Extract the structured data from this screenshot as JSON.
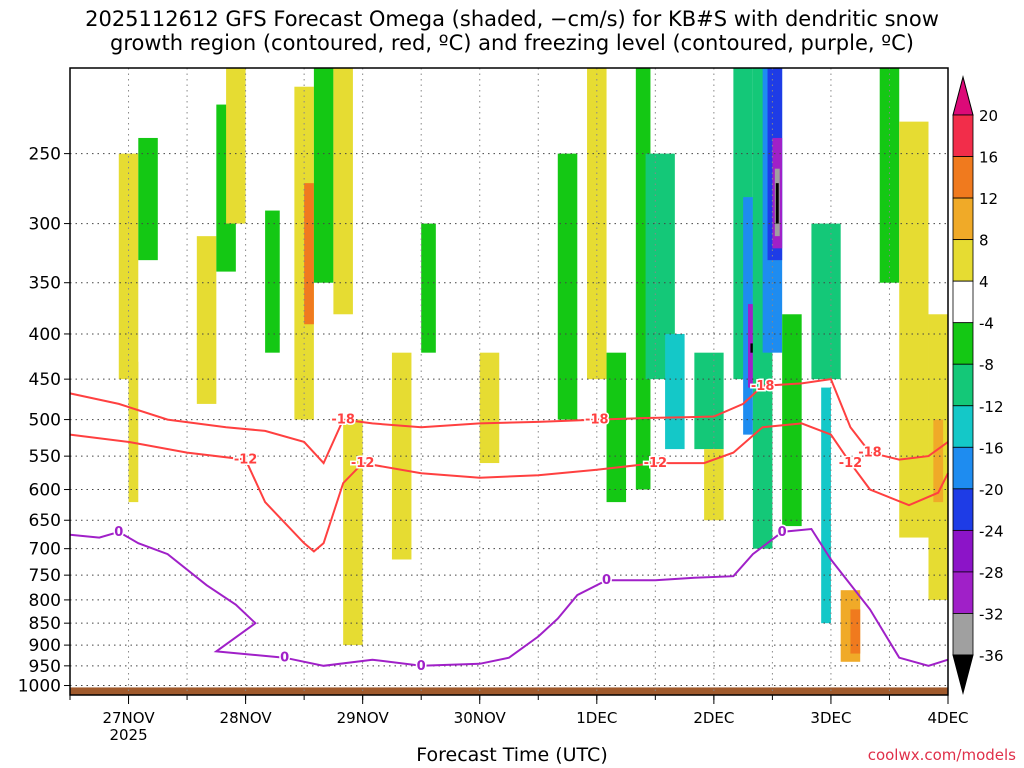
{
  "title_line1": "2025112612 GFS Forecast Omega (shaded, −cm/s) for KB#S with dendritic snow",
  "title_line2": "growth region (contoured, red, ºC) and freezing level (contoured, purple, ºC)",
  "credit": "coolwx.com/models",
  "colors": {
    "dendritic_contour": "#ff4040",
    "freezing_contour": "#a020c8",
    "terrain": "#a05a2c",
    "grid": "#888888"
  },
  "chart_data": {
    "type": "heatmap",
    "xlabel": "Forecast Time (UTC)",
    "ylabel": "",
    "x_ticks": [
      {
        "label": "27NOV",
        "sub": "2025",
        "hour": 12
      },
      {
        "label": "28NOV",
        "sub": "",
        "hour": 36
      },
      {
        "label": "29NOV",
        "sub": "",
        "hour": 60
      },
      {
        "label": "30NOV",
        "sub": "",
        "hour": 84
      },
      {
        "label": "1DEC",
        "sub": "",
        "hour": 108
      },
      {
        "label": "2DEC",
        "sub": "",
        "hour": 132
      },
      {
        "label": "3DEC",
        "sub": "",
        "hour": 156
      },
      {
        "label": "4DEC",
        "sub": "",
        "hour": 180
      }
    ],
    "xlim_hours": [
      0,
      180
    ],
    "y_axis": {
      "scale": "log-pressure",
      "ylim_hpa": [
        1025,
        200
      ],
      "ticks": [
        250,
        300,
        350,
        400,
        450,
        500,
        550,
        600,
        650,
        700,
        750,
        800,
        850,
        900,
        950,
        1000
      ]
    },
    "colorbar": {
      "labels": [
        "20",
        "16",
        "12",
        "8",
        "4",
        "-4",
        "-8",
        "-12",
        "-16",
        "-20",
        "-24",
        "-28",
        "-32",
        "-36"
      ],
      "bins": [
        {
          "from": 16,
          "to": 20,
          "color": "#f22d4a"
        },
        {
          "from": 12,
          "to": 16,
          "color": "#f07a1e"
        },
        {
          "from": 8,
          "to": 12,
          "color": "#f0aa28"
        },
        {
          "from": 4,
          "to": 8,
          "color": "#e6dc32"
        },
        {
          "from": -4,
          "to": 4,
          "color": "#ffffff"
        },
        {
          "from": -8,
          "to": -4,
          "color": "#14c814"
        },
        {
          "from": -12,
          "to": -8,
          "color": "#14c878"
        },
        {
          "from": -16,
          "to": -12,
          "color": "#14c8c8"
        },
        {
          "from": -20,
          "to": -16,
          "color": "#1e8cf0"
        },
        {
          "from": -24,
          "to": -20,
          "color": "#1e3ce6"
        },
        {
          "from": -28,
          "to": -24,
          "color": "#8c14c8"
        },
        {
          "from": -32,
          "to": -28,
          "color": "#a020c8"
        },
        {
          "from": -36,
          "to": -32,
          "color": "#a0a0a0"
        }
      ],
      "top_triangle_color": "#dc0a78",
      "bottom_triangle_color": "#000000"
    },
    "contour_labels": {
      "dendritic_top": "-18",
      "dendritic_bottom": "-12",
      "freezing": "0"
    },
    "dendritic_top_contour": [
      [
        0,
        467
      ],
      [
        10,
        480
      ],
      [
        20,
        500
      ],
      [
        32,
        510
      ],
      [
        40,
        515
      ],
      [
        48,
        530
      ],
      [
        52,
        560
      ],
      [
        56,
        500
      ],
      [
        62,
        505
      ],
      [
        72,
        510
      ],
      [
        84,
        505
      ],
      [
        96,
        503
      ],
      [
        108,
        500
      ],
      [
        118,
        498
      ],
      [
        126,
        497
      ],
      [
        132,
        496
      ],
      [
        138,
        480
      ],
      [
        142,
        458
      ],
      [
        150,
        455
      ],
      [
        156,
        450
      ],
      [
        160,
        510
      ],
      [
        164,
        545
      ],
      [
        170,
        555
      ],
      [
        176,
        550
      ],
      [
        180,
        530
      ]
    ],
    "dendritic_bottom_contour": [
      [
        0,
        520
      ],
      [
        12,
        530
      ],
      [
        24,
        545
      ],
      [
        36,
        555
      ],
      [
        40,
        620
      ],
      [
        48,
        690
      ],
      [
        50,
        705
      ],
      [
        52,
        690
      ],
      [
        56,
        590
      ],
      [
        60,
        560
      ],
      [
        72,
        575
      ],
      [
        84,
        582
      ],
      [
        96,
        578
      ],
      [
        108,
        570
      ],
      [
        120,
        560
      ],
      [
        130,
        560
      ],
      [
        136,
        545
      ],
      [
        142,
        510
      ],
      [
        150,
        505
      ],
      [
        156,
        520
      ],
      [
        160,
        560
      ],
      [
        164,
        600
      ],
      [
        172,
        625
      ],
      [
        178,
        605
      ],
      [
        180,
        575
      ]
    ],
    "freezing_contour": [
      [
        0,
        675
      ],
      [
        6,
        680
      ],
      [
        10,
        670
      ],
      [
        14,
        690
      ],
      [
        20,
        710
      ],
      [
        28,
        770
      ],
      [
        34,
        810
      ],
      [
        38,
        850
      ],
      [
        30,
        915
      ],
      [
        44,
        930
      ],
      [
        52,
        950
      ],
      [
        62,
        935
      ],
      [
        72,
        950
      ],
      [
        84,
        945
      ],
      [
        90,
        930
      ],
      [
        96,
        880
      ],
      [
        100,
        840
      ],
      [
        104,
        790
      ],
      [
        110,
        760
      ],
      [
        120,
        760
      ],
      [
        128,
        755
      ],
      [
        136,
        752
      ],
      [
        140,
        710
      ],
      [
        146,
        670
      ],
      [
        152,
        665
      ],
      [
        156,
        720
      ],
      [
        164,
        820
      ],
      [
        170,
        930
      ],
      [
        176,
        950
      ],
      [
        180,
        935
      ]
    ],
    "omega_cells": [
      {
        "h0": 10,
        "h1": 14,
        "p_top": 250,
        "p_bot": 450,
        "value": 6
      },
      {
        "h0": 12,
        "h1": 14,
        "p_top": 430,
        "p_bot": 620,
        "value": 6
      },
      {
        "h0": 14,
        "h1": 18,
        "p_top": 240,
        "p_bot": 330,
        "value": -6
      },
      {
        "h0": 26,
        "h1": 30,
        "p_top": 310,
        "p_bot": 480,
        "value": 6
      },
      {
        "h0": 30,
        "h1": 34,
        "p_top": 220,
        "p_bot": 340,
        "value": -6
      },
      {
        "h0": 32,
        "h1": 36,
        "p_top": 200,
        "p_bot": 300,
        "value": 6
      },
      {
        "h0": 40,
        "h1": 43,
        "p_top": 290,
        "p_bot": 420,
        "value": -6
      },
      {
        "h0": 46,
        "h1": 50,
        "p_top": 210,
        "p_bot": 500,
        "value": 6
      },
      {
        "h0": 48,
        "h1": 50,
        "p_top": 270,
        "p_bot": 390,
        "value": 14
      },
      {
        "h0": 50,
        "h1": 54,
        "p_top": 200,
        "p_bot": 350,
        "value": -6
      },
      {
        "h0": 54,
        "h1": 58,
        "p_top": 200,
        "p_bot": 380,
        "value": 6
      },
      {
        "h0": 56,
        "h1": 60,
        "p_top": 500,
        "p_bot": 900,
        "value": 6
      },
      {
        "h0": 66,
        "h1": 70,
        "p_top": 420,
        "p_bot": 720,
        "value": 6
      },
      {
        "h0": 72,
        "h1": 75,
        "p_top": 300,
        "p_bot": 420,
        "value": -6
      },
      {
        "h0": 84,
        "h1": 88,
        "p_top": 420,
        "p_bot": 560,
        "value": 6
      },
      {
        "h0": 100,
        "h1": 104,
        "p_top": 250,
        "p_bot": 500,
        "value": -6
      },
      {
        "h0": 106,
        "h1": 110,
        "p_top": 200,
        "p_bot": 450,
        "value": 6
      },
      {
        "h0": 110,
        "h1": 114,
        "p_top": 420,
        "p_bot": 620,
        "value": -6
      },
      {
        "h0": 116,
        "h1": 119,
        "p_top": 200,
        "p_bot": 600,
        "value": -6
      },
      {
        "h0": 118,
        "h1": 124,
        "p_top": 250,
        "p_bot": 450,
        "value": -10
      },
      {
        "h0": 122,
        "h1": 126,
        "p_top": 400,
        "p_bot": 540,
        "value": -14
      },
      {
        "h0": 128,
        "h1": 134,
        "p_top": 420,
        "p_bot": 540,
        "value": -10
      },
      {
        "h0": 130,
        "h1": 134,
        "p_top": 540,
        "p_bot": 650,
        "value": 6
      },
      {
        "h0": 136,
        "h1": 140,
        "p_top": 200,
        "p_bot": 450,
        "value": -10
      },
      {
        "h0": 138,
        "h1": 140,
        "p_top": 280,
        "p_bot": 520,
        "value": -18
      },
      {
        "h0": 139,
        "h1": 140,
        "p_top": 370,
        "p_bot": 460,
        "value": -30
      },
      {
        "h0": 139.5,
        "h1": 140,
        "p_top": 410,
        "p_bot": 420,
        "value": -40
      },
      {
        "h0": 140,
        "h1": 144,
        "p_top": 200,
        "p_bot": 700,
        "value": -10
      },
      {
        "h0": 142,
        "h1": 146,
        "p_top": 200,
        "p_bot": 420,
        "value": -18
      },
      {
        "h0": 143,
        "h1": 146,
        "p_top": 200,
        "p_bot": 330,
        "value": -22
      },
      {
        "h0": 144,
        "h1": 146,
        "p_top": 240,
        "p_bot": 320,
        "value": -30
      },
      {
        "h0": 144.5,
        "h1": 145.5,
        "p_top": 260,
        "p_bot": 310,
        "value": -34
      },
      {
        "h0": 144.7,
        "h1": 145.3,
        "p_top": 270,
        "p_bot": 300,
        "value": -40
      },
      {
        "h0": 146,
        "h1": 150,
        "p_top": 380,
        "p_bot": 660,
        "value": -6
      },
      {
        "h0": 152,
        "h1": 158,
        "p_top": 300,
        "p_bot": 450,
        "value": -10
      },
      {
        "h0": 154,
        "h1": 156,
        "p_top": 460,
        "p_bot": 850,
        "value": -14
      },
      {
        "h0": 158,
        "h1": 162,
        "p_top": 780,
        "p_bot": 940,
        "value": 10
      },
      {
        "h0": 160,
        "h1": 162,
        "p_top": 820,
        "p_bot": 920,
        "value": 14
      },
      {
        "h0": 166,
        "h1": 170,
        "p_top": 200,
        "p_bot": 350,
        "value": -6
      },
      {
        "h0": 170,
        "h1": 176,
        "p_top": 230,
        "p_bot": 680,
        "value": 6
      },
      {
        "h0": 176,
        "h1": 180,
        "p_top": 380,
        "p_bot": 800,
        "value": 6
      },
      {
        "h0": 177,
        "h1": 179,
        "p_top": 500,
        "p_bot": 620,
        "value": 10
      }
    ]
  }
}
